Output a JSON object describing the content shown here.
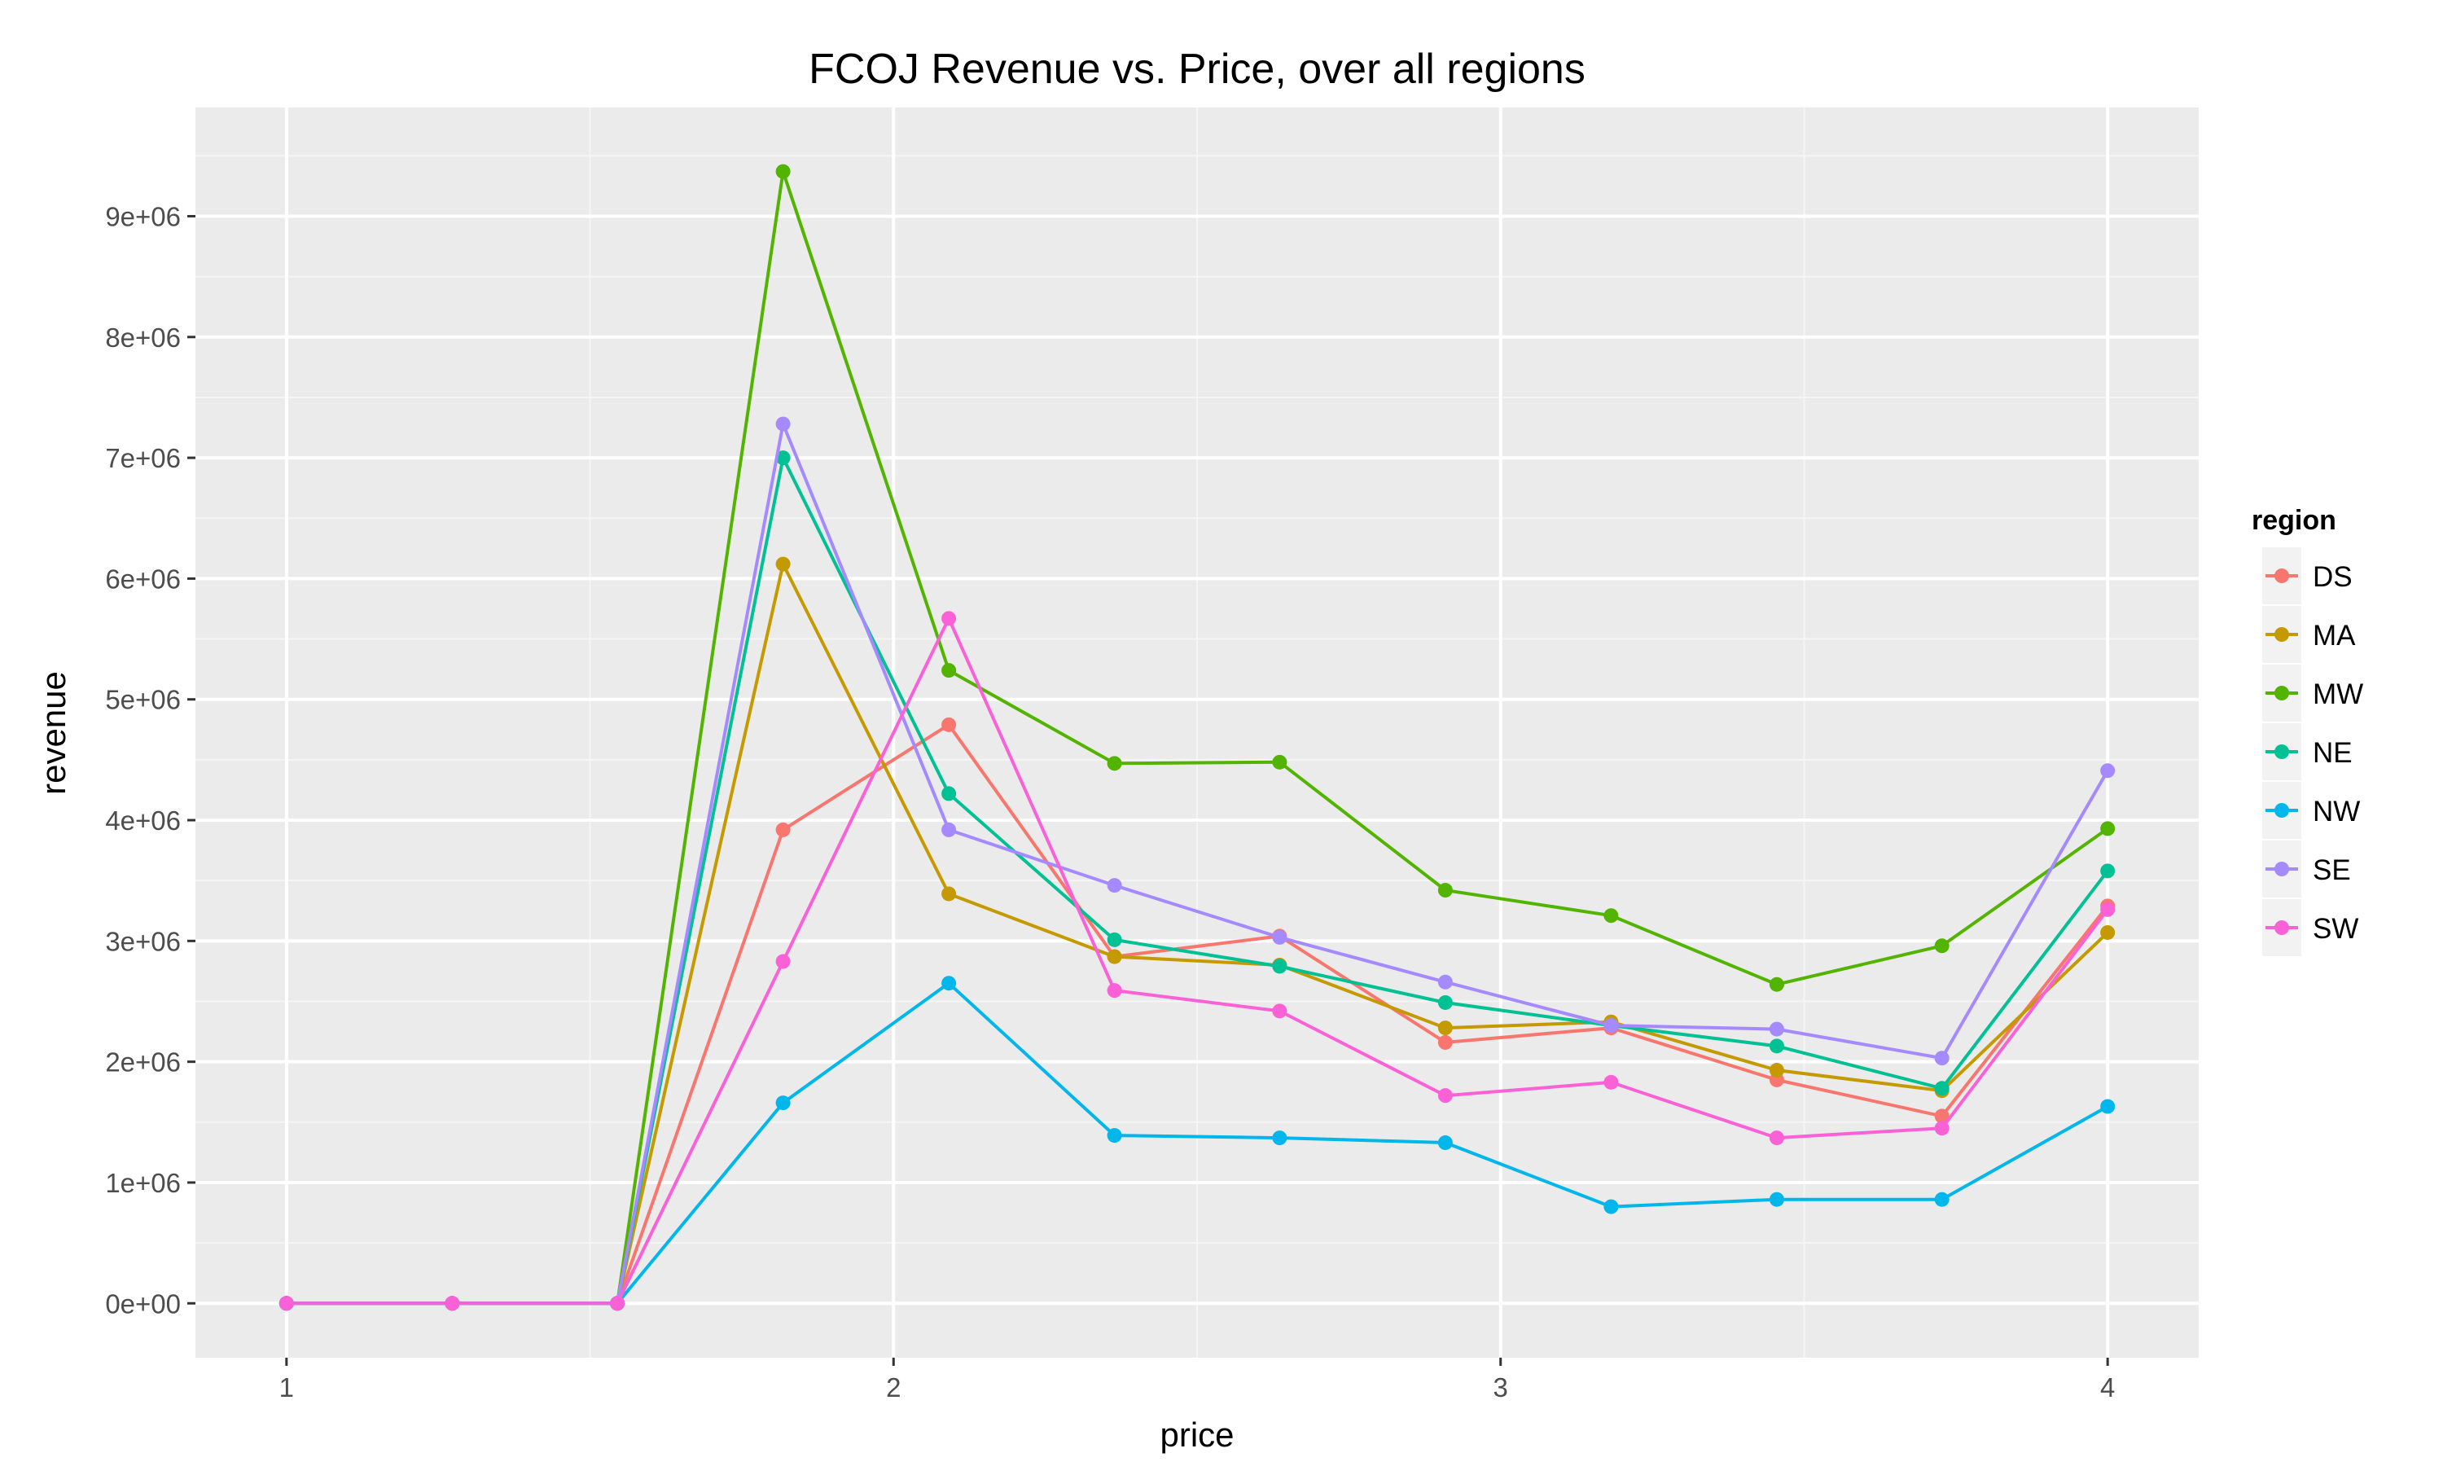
{
  "chart_data": {
    "type": "line",
    "title": "FCOJ Revenue vs. Price, over all regions",
    "xlabel": "price",
    "ylabel": "revenue",
    "xlim": [
      0.85,
      4.15
    ],
    "ylim": [
      -450000,
      9900000
    ],
    "x_ticks": [
      1,
      2,
      3,
      4
    ],
    "x_tick_labels": [
      "1",
      "2",
      "3",
      "4"
    ],
    "y_ticks": [
      0,
      1000000,
      2000000,
      3000000,
      4000000,
      5000000,
      6000000,
      7000000,
      8000000,
      9000000
    ],
    "y_tick_labels": [
      "0e+00",
      "1e+06",
      "2e+06",
      "3e+06",
      "4e+06",
      "5e+06",
      "6e+06",
      "7e+06",
      "8e+06",
      "9e+06"
    ],
    "grid": true,
    "legend_title": "region",
    "legend_position": "right",
    "x": [
      1.0,
      1.273,
      1.545,
      1.818,
      2.091,
      2.364,
      2.636,
      2.909,
      3.182,
      3.455,
      3.727,
      4.0
    ],
    "series": [
      {
        "name": "DS",
        "color": "#F8766D",
        "values": [
          0,
          0,
          0,
          3920000,
          4790000,
          2870000,
          3040000,
          2160000,
          2280000,
          1850000,
          1550000,
          3290000
        ]
      },
      {
        "name": "MA",
        "color": "#C49A00",
        "values": [
          0,
          0,
          0,
          6120000,
          3390000,
          2870000,
          2800000,
          2280000,
          2330000,
          1930000,
          1760000,
          3070000
        ]
      },
      {
        "name": "MW",
        "color": "#53B400",
        "values": [
          0,
          0,
          0,
          9370000,
          5240000,
          4470000,
          4480000,
          3420000,
          3210000,
          2640000,
          2960000,
          3930000
        ]
      },
      {
        "name": "NE",
        "color": "#00C094",
        "values": [
          0,
          0,
          0,
          7000000,
          4220000,
          3010000,
          2790000,
          2490000,
          2300000,
          2130000,
          1780000,
          3580000
        ]
      },
      {
        "name": "NW",
        "color": "#00B6EB",
        "values": [
          0,
          0,
          0,
          1660000,
          2650000,
          1390000,
          1370000,
          1330000,
          800000,
          860000,
          860000,
          1630000
        ]
      },
      {
        "name": "SE",
        "color": "#A58AFF",
        "values": [
          0,
          0,
          0,
          7280000,
          3920000,
          3460000,
          3030000,
          2660000,
          2300000,
          2270000,
          2030000,
          4410000
        ]
      },
      {
        "name": "SW",
        "color": "#FB61D7",
        "values": [
          0,
          0,
          0,
          2830000,
          5670000,
          2590000,
          2420000,
          1720000,
          1830000,
          1370000,
          1450000,
          3260000
        ]
      }
    ]
  },
  "style": {
    "panel_bg": "#EBEBEB",
    "grid_major": "#FFFFFF",
    "grid_minor": "#F5F5F5",
    "legend_key_bg": "#F2F2F2"
  }
}
